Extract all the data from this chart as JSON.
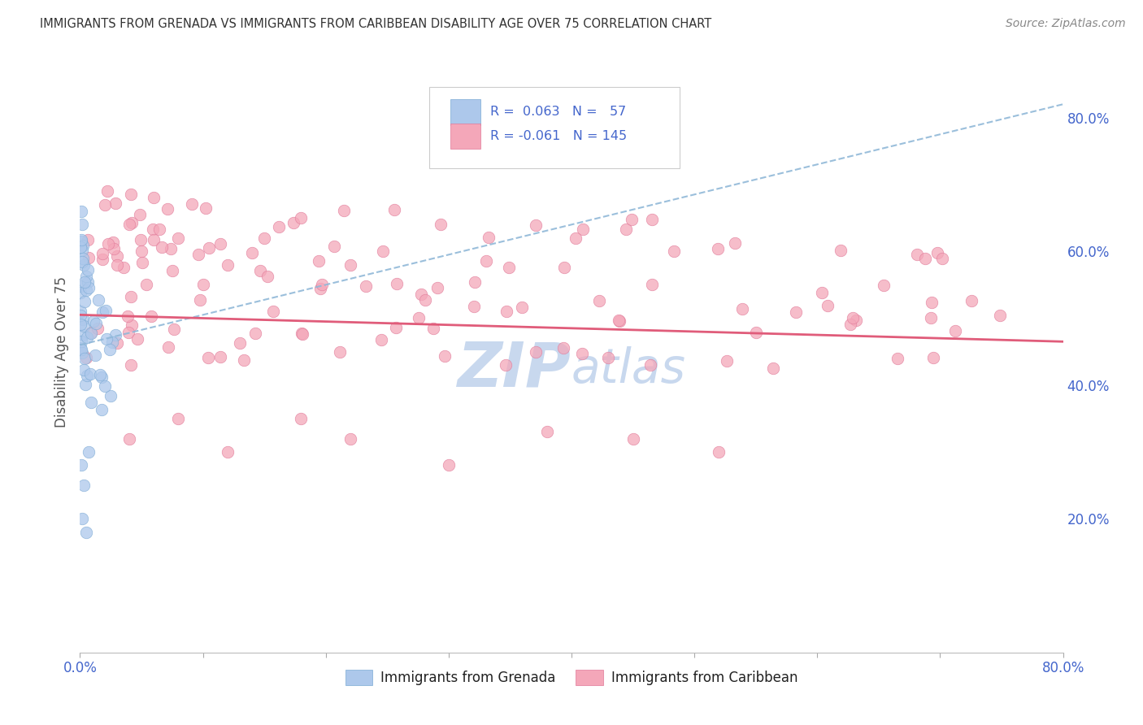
{
  "title": "IMMIGRANTS FROM GRENADA VS IMMIGRANTS FROM CARIBBEAN DISABILITY AGE OVER 75 CORRELATION CHART",
  "source": "Source: ZipAtlas.com",
  "ylabel": "Disability Age Over 75",
  "xlim": [
    0.0,
    0.8
  ],
  "ylim": [
    0.0,
    0.9
  ],
  "grenada_R": 0.063,
  "grenada_N": 57,
  "caribbean_R": -0.061,
  "caribbean_N": 145,
  "grenada_color": "#adc8eb",
  "grenada_edge_color": "#7baad4",
  "grenada_line_color": "#90b8d8",
  "caribbean_color": "#f4a7b9",
  "caribbean_edge_color": "#e07898",
  "caribbean_line_color": "#e05c7a",
  "background_color": "#ffffff",
  "grid_color": "#d8dde8",
  "right_tick_color": "#4466cc",
  "bottom_tick_color": "#4466cc",
  "watermark_color": "#c8d8ee",
  "legend_text_color": "#4466cc"
}
